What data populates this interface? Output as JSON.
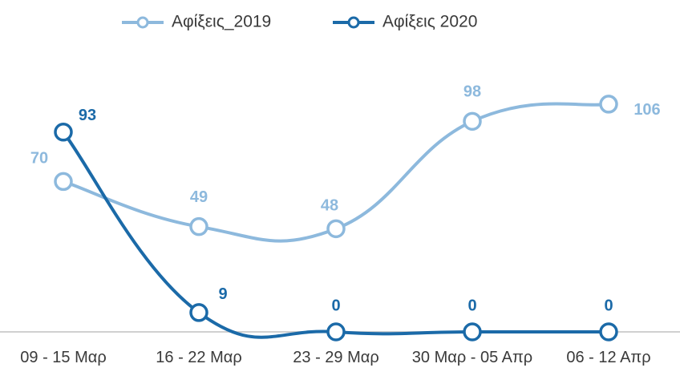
{
  "chart_data": {
    "type": "line",
    "categories": [
      "09 - 15 Μαρ",
      "16 - 22 Μαρ",
      "23 - 29 Μαρ",
      "30 Μαρ - 05 Απρ",
      "06 - 12 Απρ"
    ],
    "series": [
      {
        "name": "Αφίξεις_2019",
        "values": [
          70,
          49,
          48,
          98,
          106
        ],
        "color": "#8db9dd"
      },
      {
        "name": "Αφίξεις 2020",
        "values": [
          93,
          9,
          0,
          0,
          0
        ],
        "color": "#1b6aa8"
      }
    ],
    "title": "",
    "xlabel": "",
    "ylabel": "",
    "ylim": [
      0,
      130
    ],
    "grid": false,
    "legend": "top-center",
    "axis_color": "#d0d0d0"
  }
}
